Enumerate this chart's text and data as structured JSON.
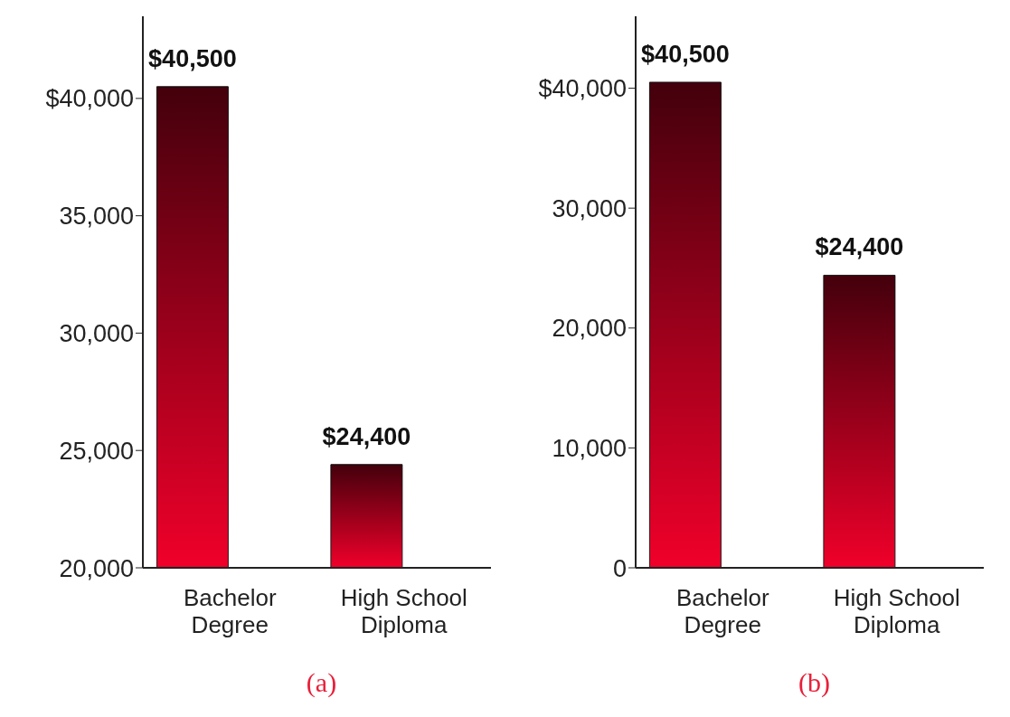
{
  "chart_data": [
    {
      "type": "bar",
      "categories": [
        "Bachelor Degree",
        "High School Diploma"
      ],
      "values": [
        40500,
        24400
      ],
      "value_labels": [
        "$40,500",
        "$24,400"
      ],
      "color": "#f0002a",
      "ylim": [
        20000,
        43500
      ],
      "yticks": [
        {
          "value": 20000,
          "label": "20,000"
        },
        {
          "value": 25000,
          "label": "25,000"
        },
        {
          "value": 30000,
          "label": "30,000"
        },
        {
          "value": 35000,
          "label": "35,000"
        },
        {
          "value": 40000,
          "label": "$40,000"
        }
      ],
      "grid": false,
      "legend": false,
      "annotations": [
        "(a)"
      ]
    },
    {
      "type": "bar",
      "categories": [
        "Bachelor Degree",
        "High School Diploma"
      ],
      "values": [
        40500,
        24400
      ],
      "value_labels": [
        "$40,500",
        "$24,400"
      ],
      "color": "#f0002a",
      "ylim": [
        0,
        46000
      ],
      "yticks": [
        0,
        {
          "value": 10000,
          "label": "10,000"
        },
        {
          "value": 20000,
          "label": "20,000"
        },
        {
          "value": 30000,
          "label": "30,000"
        },
        {
          "value": 40000,
          "label": "$40,000"
        }
      ],
      "grid": false,
      "legend": false,
      "annotations": [
        "(b)"
      ]
    }
  ]
}
